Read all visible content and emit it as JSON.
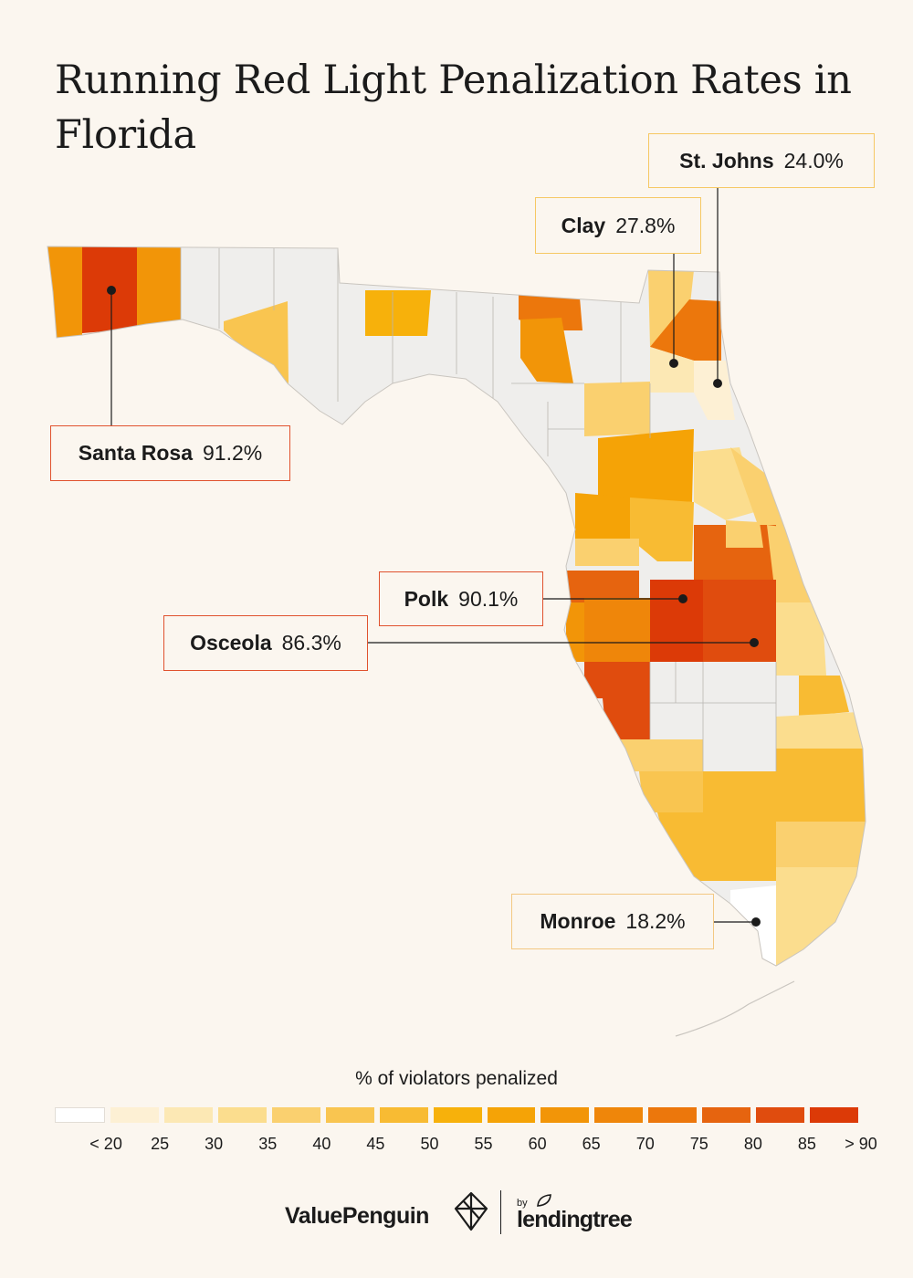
{
  "title": "Running Red Light Penalization Rates in Florida",
  "callouts": {
    "st_johns": {
      "name": "St. Johns",
      "value": "24.0%"
    },
    "clay": {
      "name": "Clay",
      "value": "27.8%"
    },
    "santa_rosa": {
      "name": "Santa Rosa",
      "value": "91.2%"
    },
    "polk": {
      "name": "Polk",
      "value": "90.1%"
    },
    "osceola": {
      "name": "Osceola",
      "value": "86.3%"
    },
    "monroe": {
      "name": "Monroe",
      "value": "18.2%"
    }
  },
  "legend": {
    "title": "% of violators penalized",
    "ticks": [
      "< 20",
      "25",
      "30",
      "35",
      "40",
      "45",
      "50",
      "55",
      "60",
      "65",
      "70",
      "75",
      "80",
      "85",
      "> 90"
    ],
    "colors": [
      "#ffffff",
      "#fdf0d4",
      "#fce8b4",
      "#fbdd8e",
      "#fad06f",
      "#f9c550",
      "#f8bb33",
      "#f7b10b",
      "#f5a306",
      "#f29508",
      "#ef860a",
      "#ec770c",
      "#e6640f",
      "#e04c0e",
      "#dc3a07"
    ]
  },
  "colors": {
    "no_data": "#efeeec",
    "county_border": "#b9b6b2",
    "leader_line": "#1b1b1b"
  },
  "footer": {
    "brand": "ValuePenguin",
    "by": "by",
    "partner": "lendingtree"
  }
}
